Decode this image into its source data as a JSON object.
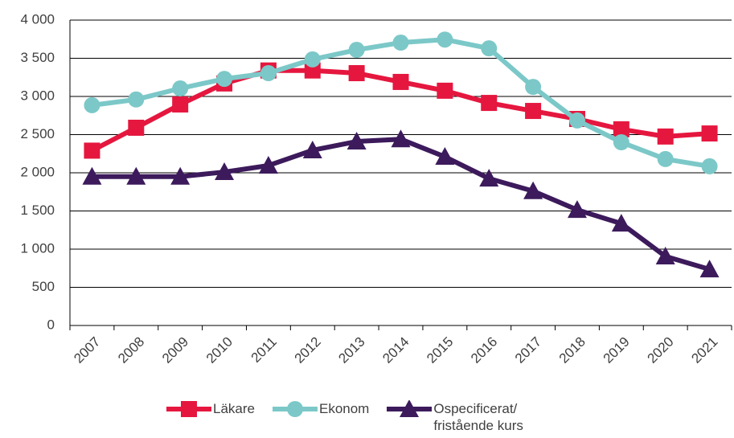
{
  "chart_data": {
    "type": "line",
    "categories": [
      "2007",
      "2008",
      "2009",
      "2010",
      "2011",
      "2012",
      "2013",
      "2014",
      "2015",
      "2016",
      "2017",
      "2018",
      "2019",
      "2020",
      "2021"
    ],
    "series": [
      {
        "name": "Läkare",
        "color": "#e5173f",
        "marker": "square",
        "values": [
          2290,
          2590,
          2895,
          3170,
          3340,
          3340,
          3305,
          3190,
          3075,
          2915,
          2810,
          2705,
          2570,
          2475,
          2515
        ]
      },
      {
        "name": "Ekonom",
        "color": "#7cc8c8",
        "marker": "circle",
        "values": [
          2885,
          2960,
          3105,
          3230,
          3305,
          3485,
          3610,
          3705,
          3745,
          3630,
          3125,
          2685,
          2400,
          2180,
          2085
        ]
      },
      {
        "name": "Ospecificerat/ fristående kurs",
        "color": "#3c1a5b",
        "marker": "triangle",
        "values": [
          1950,
          1950,
          1950,
          2010,
          2095,
          2295,
          2410,
          2440,
          2210,
          1925,
          1760,
          1515,
          1335,
          905,
          735
        ]
      }
    ],
    "ylim": [
      0,
      4000
    ],
    "yticks": [
      0,
      500,
      {
        "value": 1000,
        "label": "1 000"
      },
      {
        "value": 1500,
        "label": "1 500"
      },
      {
        "value": 2000,
        "label": "2 000"
      },
      {
        "value": 2500,
        "label": "2 500"
      },
      {
        "value": 3000,
        "label": "3 000"
      },
      {
        "value": 3500,
        "label": "3 500"
      },
      {
        "value": 4000,
        "label": "4 000"
      }
    ],
    "grid": true,
    "legend": "bottom"
  }
}
